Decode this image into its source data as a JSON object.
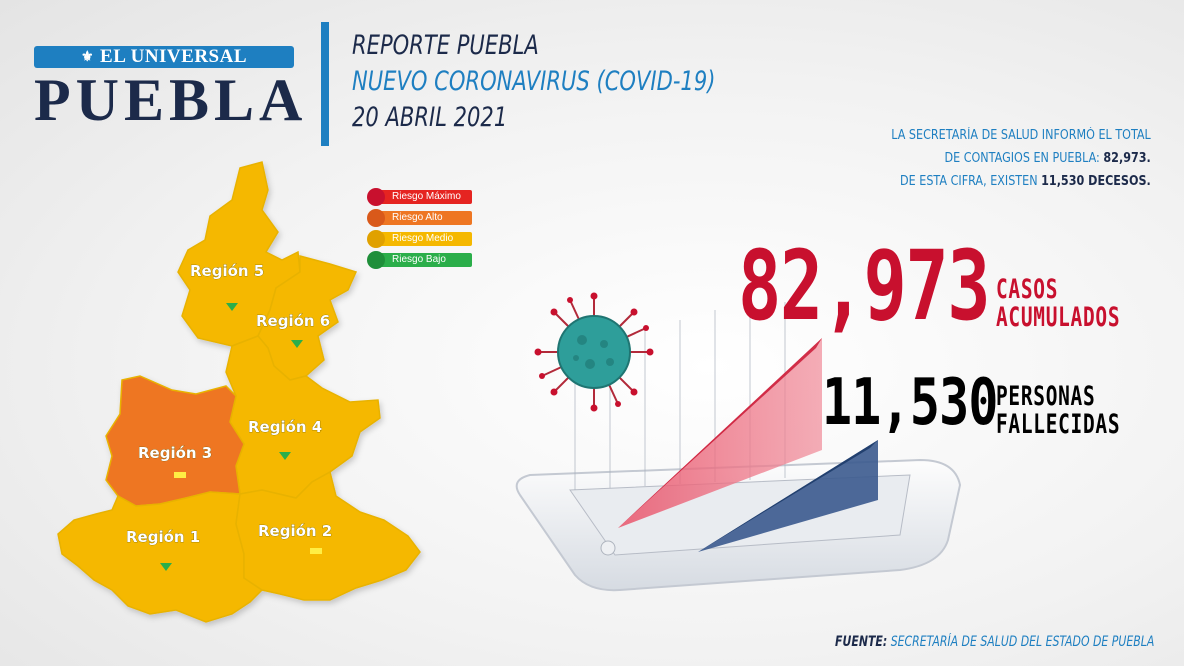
{
  "logo": {
    "top": "EL UNIVERSAL",
    "city": "PUEBLA"
  },
  "headline": {
    "line1": "REPORTE PUEBLA",
    "line2": "NUEVO CORONAVIRUS (COVID-19)",
    "line3": "20 ABRIL 2021"
  },
  "info": {
    "line1": "LA SECRETARÍA DE SALUD  INFORMÓ EL TOTAL",
    "line2_prefix": "DE CONTAGIOS EN PUEBLA: ",
    "line2_value": "82,973.",
    "line3_prefix": "DE ESTA CIFRA, EXISTEN ",
    "line3_value": "11,530 DECESOS."
  },
  "legend": [
    {
      "label": "Riesgo Máximo",
      "color": "#e52421",
      "dot": "#c8102e"
    },
    {
      "label": "Riesgo Alto",
      "color": "#ee7622",
      "dot": "#d9591a"
    },
    {
      "label": "Riesgo Medio",
      "color": "#f5b800",
      "dot": "#e0a100"
    },
    {
      "label": "Riesgo Bajo",
      "color": "#2bae4a",
      "dot": "#1f8f3a"
    }
  ],
  "regions": [
    {
      "label": "Región 5",
      "risk": "Riesgo Medio",
      "marker": "green-triangle"
    },
    {
      "label": "Región 6",
      "risk": "Riesgo Medio",
      "marker": "green-triangle"
    },
    {
      "label": "Región 4",
      "risk": "Riesgo Medio",
      "marker": "green-triangle"
    },
    {
      "label": "Región 3",
      "risk": "Riesgo Alto",
      "marker": "yellow-bar"
    },
    {
      "label": "Región 1",
      "risk": "Riesgo Medio",
      "marker": "green-triangle"
    },
    {
      "label": "Región 2",
      "risk": "Riesgo Medio",
      "marker": "yellow-bar"
    }
  ],
  "stats": {
    "cases_value": "82,973",
    "cases_label1": "CASOS",
    "cases_label2": "ACUMULADOS",
    "deaths_value": "11,530",
    "deaths_label1": "PERSONAS",
    "deaths_label2": "FALLECIDAS"
  },
  "source": {
    "prefix": "FUENTE:",
    "text": " SECRETARÍA DE SALUD DEL ESTADO DE PUEBLA"
  },
  "colors": {
    "brand_blue": "#1e7fc1",
    "navy": "#1c2a4a",
    "cases_red": "#c8102e",
    "region_medium": "#f5b800",
    "region_high": "#ee7622"
  },
  "icons": [
    "newspaper-emblem-icon",
    "coronavirus-icon",
    "tablet-chart-icon"
  ]
}
